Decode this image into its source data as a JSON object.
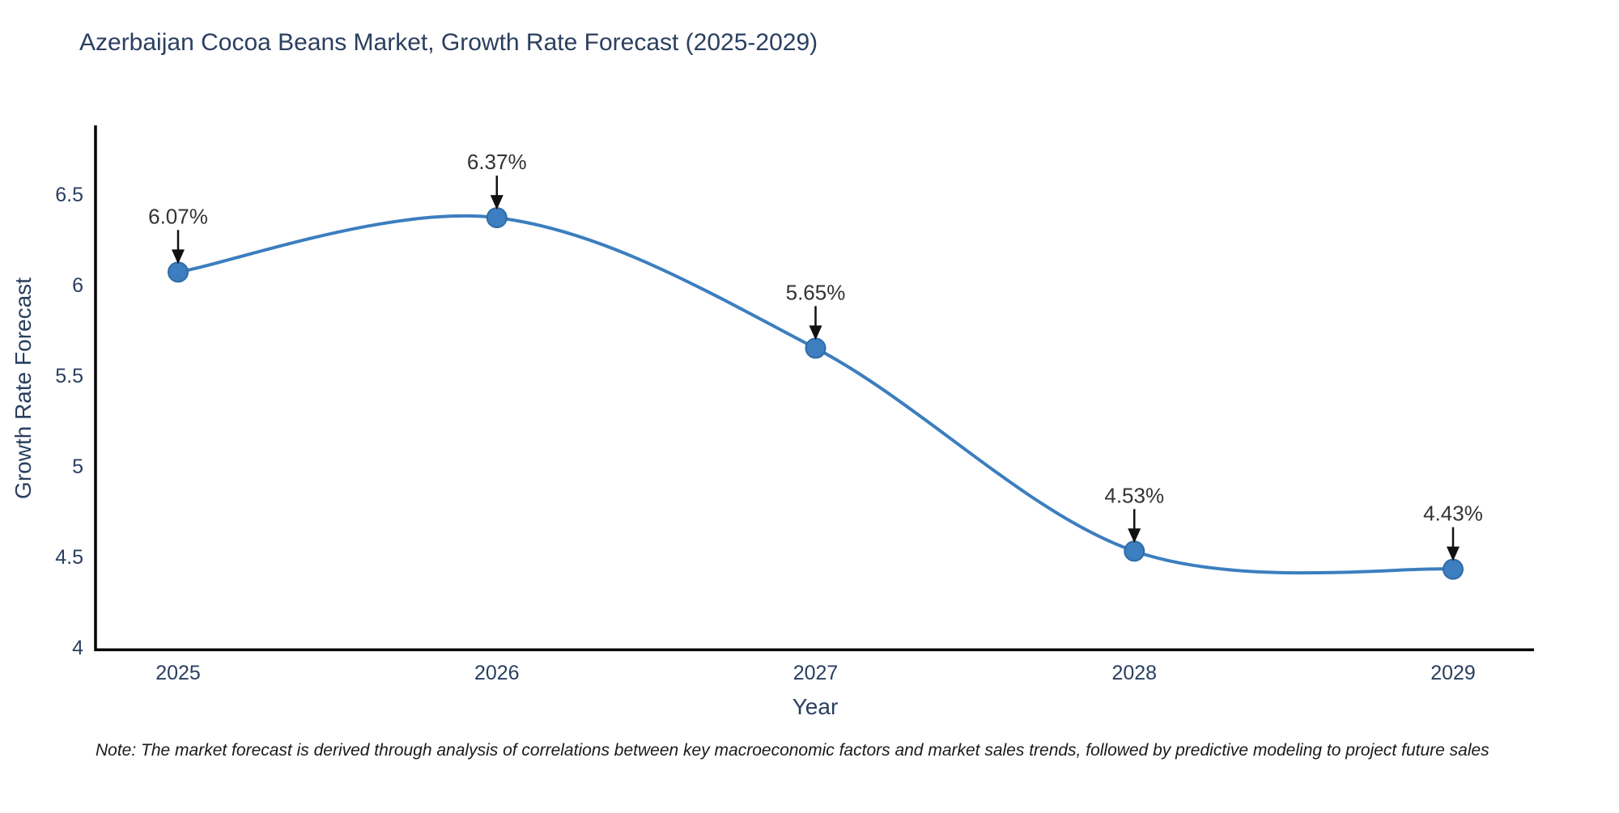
{
  "chart_data": {
    "type": "line",
    "line_shape": "spline",
    "categories": [
      "2025",
      "2026",
      "2027",
      "2028",
      "2029"
    ],
    "series": [
      {
        "name": "Growth Rate Forecast",
        "values": [
          6.07,
          6.37,
          5.65,
          4.53,
          4.43
        ]
      }
    ],
    "point_labels": [
      "6.07%",
      "6.37%",
      "5.65%",
      "4.53%",
      "4.43%"
    ],
    "title": "Azerbaijan Cocoa Beans Market, Growth Rate Forecast (2025-2029)",
    "xlabel": "Year",
    "ylabel": "Growth Rate Forecast",
    "yticks": [
      4,
      4.5,
      5,
      5.5,
      6,
      6.5
    ],
    "ylim": [
      3.9,
      6.9
    ],
    "grid": false,
    "legend_position": "none",
    "colors": {
      "line": "#3C7EBF",
      "marker_fill": "#3C7EBF",
      "marker_border": "#2F6BA8",
      "axis_line": "#000000",
      "tick_text": "#2a3f5f",
      "annotation_text": "#333333",
      "arrow": "#111111"
    }
  },
  "note": "Note: The market forecast is derived through analysis of correlations between key macroeconomic factors and market sales trends, followed by predictive modeling to project future sales"
}
